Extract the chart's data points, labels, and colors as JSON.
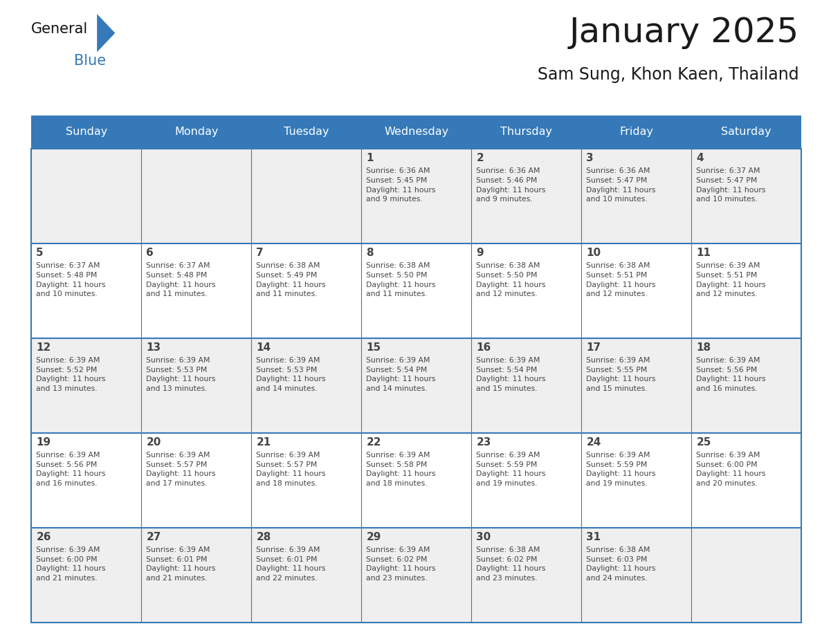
{
  "title": "January 2025",
  "subtitle": "Sam Sung, Khon Kaen, Thailand",
  "days_of_week": [
    "Sunday",
    "Monday",
    "Tuesday",
    "Wednesday",
    "Thursday",
    "Friday",
    "Saturday"
  ],
  "header_bg": "#3579b8",
  "header_text": "#ffffff",
  "cell_bg_odd": "#efefef",
  "cell_bg_even": "#ffffff",
  "border_color": "#3579b8",
  "text_color": "#444444",
  "title_color": "#1a1a1a",
  "logo_general_color": "#1a1a1a",
  "logo_blue_color": "#3579b8",
  "calendar_data": [
    [
      {
        "day": null,
        "info": null
      },
      {
        "day": null,
        "info": null
      },
      {
        "day": null,
        "info": null
      },
      {
        "day": 1,
        "info": "Sunrise: 6:36 AM\nSunset: 5:45 PM\nDaylight: 11 hours\nand 9 minutes."
      },
      {
        "day": 2,
        "info": "Sunrise: 6:36 AM\nSunset: 5:46 PM\nDaylight: 11 hours\nand 9 minutes."
      },
      {
        "day": 3,
        "info": "Sunrise: 6:36 AM\nSunset: 5:47 PM\nDaylight: 11 hours\nand 10 minutes."
      },
      {
        "day": 4,
        "info": "Sunrise: 6:37 AM\nSunset: 5:47 PM\nDaylight: 11 hours\nand 10 minutes."
      }
    ],
    [
      {
        "day": 5,
        "info": "Sunrise: 6:37 AM\nSunset: 5:48 PM\nDaylight: 11 hours\nand 10 minutes."
      },
      {
        "day": 6,
        "info": "Sunrise: 6:37 AM\nSunset: 5:48 PM\nDaylight: 11 hours\nand 11 minutes."
      },
      {
        "day": 7,
        "info": "Sunrise: 6:38 AM\nSunset: 5:49 PM\nDaylight: 11 hours\nand 11 minutes."
      },
      {
        "day": 8,
        "info": "Sunrise: 6:38 AM\nSunset: 5:50 PM\nDaylight: 11 hours\nand 11 minutes."
      },
      {
        "day": 9,
        "info": "Sunrise: 6:38 AM\nSunset: 5:50 PM\nDaylight: 11 hours\nand 12 minutes."
      },
      {
        "day": 10,
        "info": "Sunrise: 6:38 AM\nSunset: 5:51 PM\nDaylight: 11 hours\nand 12 minutes."
      },
      {
        "day": 11,
        "info": "Sunrise: 6:39 AM\nSunset: 5:51 PM\nDaylight: 11 hours\nand 12 minutes."
      }
    ],
    [
      {
        "day": 12,
        "info": "Sunrise: 6:39 AM\nSunset: 5:52 PM\nDaylight: 11 hours\nand 13 minutes."
      },
      {
        "day": 13,
        "info": "Sunrise: 6:39 AM\nSunset: 5:53 PM\nDaylight: 11 hours\nand 13 minutes."
      },
      {
        "day": 14,
        "info": "Sunrise: 6:39 AM\nSunset: 5:53 PM\nDaylight: 11 hours\nand 14 minutes."
      },
      {
        "day": 15,
        "info": "Sunrise: 6:39 AM\nSunset: 5:54 PM\nDaylight: 11 hours\nand 14 minutes."
      },
      {
        "day": 16,
        "info": "Sunrise: 6:39 AM\nSunset: 5:54 PM\nDaylight: 11 hours\nand 15 minutes."
      },
      {
        "day": 17,
        "info": "Sunrise: 6:39 AM\nSunset: 5:55 PM\nDaylight: 11 hours\nand 15 minutes."
      },
      {
        "day": 18,
        "info": "Sunrise: 6:39 AM\nSunset: 5:56 PM\nDaylight: 11 hours\nand 16 minutes."
      }
    ],
    [
      {
        "day": 19,
        "info": "Sunrise: 6:39 AM\nSunset: 5:56 PM\nDaylight: 11 hours\nand 16 minutes."
      },
      {
        "day": 20,
        "info": "Sunrise: 6:39 AM\nSunset: 5:57 PM\nDaylight: 11 hours\nand 17 minutes."
      },
      {
        "day": 21,
        "info": "Sunrise: 6:39 AM\nSunset: 5:57 PM\nDaylight: 11 hours\nand 18 minutes."
      },
      {
        "day": 22,
        "info": "Sunrise: 6:39 AM\nSunset: 5:58 PM\nDaylight: 11 hours\nand 18 minutes."
      },
      {
        "day": 23,
        "info": "Sunrise: 6:39 AM\nSunset: 5:59 PM\nDaylight: 11 hours\nand 19 minutes."
      },
      {
        "day": 24,
        "info": "Sunrise: 6:39 AM\nSunset: 5:59 PM\nDaylight: 11 hours\nand 19 minutes."
      },
      {
        "day": 25,
        "info": "Sunrise: 6:39 AM\nSunset: 6:00 PM\nDaylight: 11 hours\nand 20 minutes."
      }
    ],
    [
      {
        "day": 26,
        "info": "Sunrise: 6:39 AM\nSunset: 6:00 PM\nDaylight: 11 hours\nand 21 minutes."
      },
      {
        "day": 27,
        "info": "Sunrise: 6:39 AM\nSunset: 6:01 PM\nDaylight: 11 hours\nand 21 minutes."
      },
      {
        "day": 28,
        "info": "Sunrise: 6:39 AM\nSunset: 6:01 PM\nDaylight: 11 hours\nand 22 minutes."
      },
      {
        "day": 29,
        "info": "Sunrise: 6:39 AM\nSunset: 6:02 PM\nDaylight: 11 hours\nand 23 minutes."
      },
      {
        "day": 30,
        "info": "Sunrise: 6:38 AM\nSunset: 6:02 PM\nDaylight: 11 hours\nand 23 minutes."
      },
      {
        "day": 31,
        "info": "Sunrise: 6:38 AM\nSunset: 6:03 PM\nDaylight: 11 hours\nand 24 minutes."
      },
      {
        "day": null,
        "info": null
      }
    ]
  ],
  "fig_width": 11.88,
  "fig_height": 9.18
}
